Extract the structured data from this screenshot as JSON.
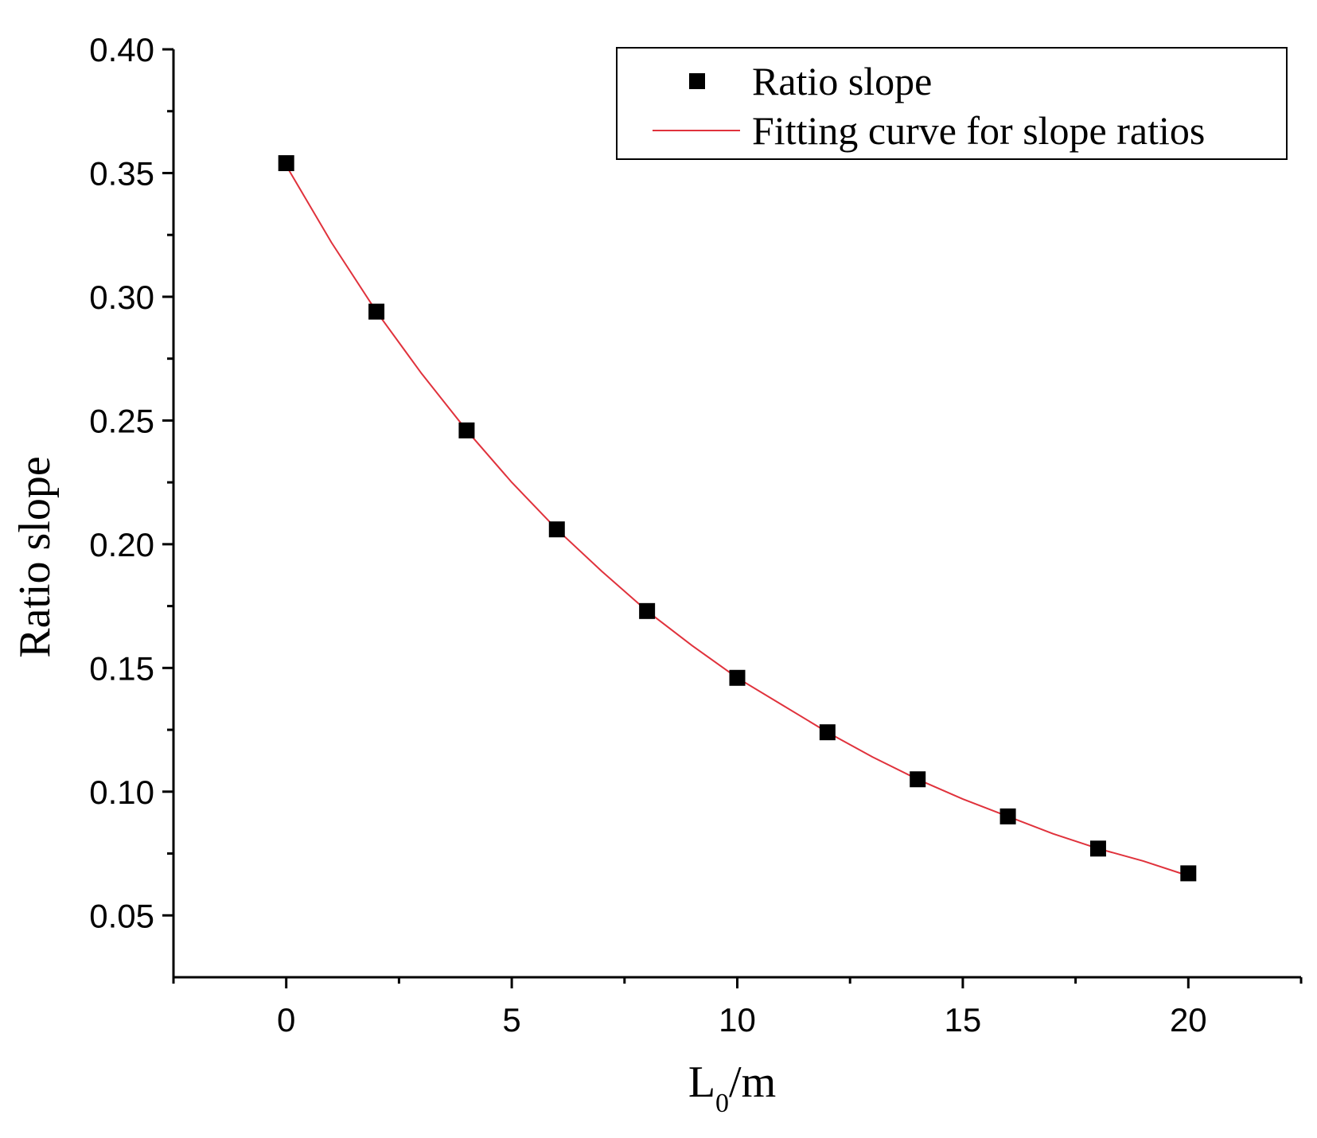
{
  "chart_data": {
    "type": "scatter",
    "title": "",
    "xlabel_main": "L",
    "xlabel_sub": "0",
    "xlabel_rest": "/m",
    "ylabel": "Ratio slope",
    "xlim": [
      -2.5,
      22.5
    ],
    "ylim": [
      0.025,
      0.4
    ],
    "x_ticks": [
      0,
      5,
      10,
      15,
      20
    ],
    "x_tick_labels": [
      "0",
      "5",
      "10",
      "15",
      "20"
    ],
    "y_ticks": [
      0.05,
      0.1,
      0.15,
      0.2,
      0.25,
      0.3,
      0.35,
      0.4
    ],
    "y_tick_labels": [
      "0.05",
      "0.10",
      "0.15",
      "0.20",
      "0.25",
      "0.30",
      "0.35",
      "0.40"
    ],
    "grid": false,
    "legend_position": "top-right",
    "series": [
      {
        "name": "Ratio slope",
        "kind": "scatter",
        "marker": "square",
        "color": "#000000",
        "x": [
          0,
          2,
          4,
          6,
          8,
          10,
          12,
          14,
          16,
          18,
          20
        ],
        "y": [
          0.354,
          0.294,
          0.246,
          0.206,
          0.173,
          0.146,
          0.124,
          0.105,
          0.09,
          0.077,
          0.067
        ]
      },
      {
        "name": "Fitting curve for slope ratios",
        "kind": "line",
        "color": "#e0323c",
        "x": [
          0,
          1,
          2,
          3,
          4,
          5,
          6,
          7,
          8,
          9,
          10,
          11,
          12,
          13,
          14,
          15,
          16,
          17,
          18,
          19,
          20
        ],
        "y": [
          0.353,
          0.322,
          0.294,
          0.269,
          0.246,
          0.225,
          0.206,
          0.189,
          0.173,
          0.159,
          0.146,
          0.135,
          0.124,
          0.114,
          0.105,
          0.097,
          0.09,
          0.083,
          0.077,
          0.072,
          0.066
        ]
      }
    ]
  }
}
